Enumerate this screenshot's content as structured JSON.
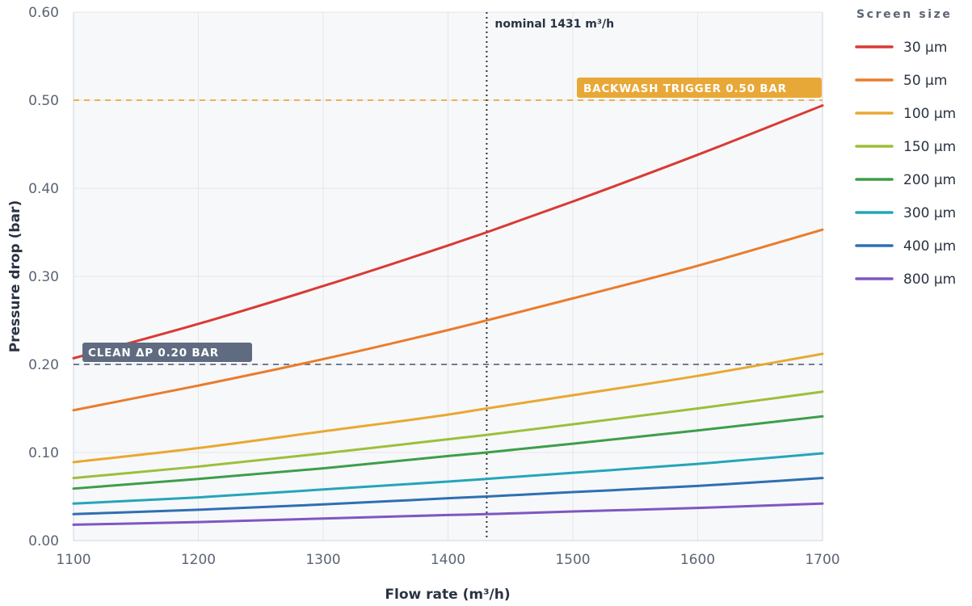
{
  "chart_data": {
    "type": "line",
    "title": "",
    "xlabel": "Flow rate (m³/h)",
    "ylabel": "Pressure drop (bar)",
    "xlim": [
      1100,
      1700
    ],
    "ylim": [
      0,
      0.6
    ],
    "x_ticks": [
      "1100",
      "1200",
      "1300",
      "1400",
      "1500",
      "1600",
      "1700"
    ],
    "y_ticks": [
      "0.00",
      "0.10",
      "0.20",
      "0.30",
      "0.40",
      "0.50",
      "0.60"
    ],
    "grid": true,
    "legend_title": "Screen size",
    "legend_position": "right",
    "x": [
      1100,
      1200,
      1300,
      1400,
      1431,
      1500,
      1600,
      1700
    ],
    "series": [
      {
        "name": "30 µm",
        "color": "#d93a33",
        "values": [
          0.207,
          0.246,
          0.289,
          0.335,
          0.35,
          0.385,
          0.438,
          0.494
        ]
      },
      {
        "name": "50 µm",
        "color": "#ea7c2b",
        "values": [
          0.148,
          0.176,
          0.206,
          0.239,
          0.25,
          0.275,
          0.312,
          0.353
        ]
      },
      {
        "name": "100 µm",
        "color": "#e8a832",
        "values": [
          0.089,
          0.105,
          0.124,
          0.143,
          0.15,
          0.165,
          0.187,
          0.212
        ]
      },
      {
        "name": "150 µm",
        "color": "#9dbf3a",
        "values": [
          0.071,
          0.084,
          0.099,
          0.115,
          0.12,
          0.132,
          0.15,
          0.169
        ]
      },
      {
        "name": "200 µm",
        "color": "#3d9e49",
        "values": [
          0.059,
          0.07,
          0.082,
          0.096,
          0.1,
          0.11,
          0.125,
          0.141
        ]
      },
      {
        "name": "300 µm",
        "color": "#25a5b8",
        "values": [
          0.042,
          0.049,
          0.058,
          0.067,
          0.07,
          0.077,
          0.087,
          0.099
        ]
      },
      {
        "name": "400 µm",
        "color": "#2e6fb3",
        "values": [
          0.03,
          0.035,
          0.041,
          0.048,
          0.05,
          0.055,
          0.062,
          0.071
        ]
      },
      {
        "name": "800 µm",
        "color": "#7e57c2",
        "values": [
          0.018,
          0.021,
          0.025,
          0.029,
          0.03,
          0.033,
          0.037,
          0.042
        ]
      }
    ],
    "reference_lines": [
      {
        "label": "BACKWASH TRIGGER 0.50 BAR",
        "y": 0.5,
        "color": "#e8a838",
        "style": "dashed"
      },
      {
        "label": "CLEAN ΔP 0.20 BAR",
        "y": 0.2,
        "color": "#5f6b80",
        "style": "dashed"
      }
    ],
    "vertical_line": {
      "label": "nominal 1431 m³/h",
      "x": 1431,
      "color": "#2a3342",
      "style": "dotted"
    }
  }
}
